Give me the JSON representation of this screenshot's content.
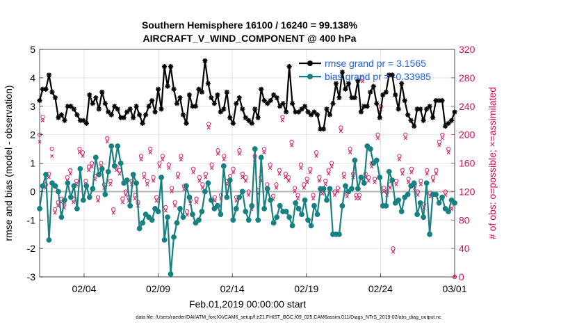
{
  "chart_data": {
    "type": "line",
    "title": "Southern Hemisphere 16100 / 16240 = 99.138%",
    "subtitle": "AIRCRAFT_V_WIND_COMPONENT @ 400 hPa",
    "xlabel": "Feb.01,2019 00:00:00 start",
    "ylabel": "rmse and bias (model - observation)",
    "y2label": "# of obs: o=possible; ×=assimilated",
    "footer": "data file: /Users/raeder/DAI/ATM_forcXX/CAM6_setup/f.e21.FHIST_BGC.f09_025.CAM6assim.011/Diags_NTrS_2019-02/obs_diag_output.nc",
    "xlim": [
      1,
      29
    ],
    "ylim": [
      -3,
      5
    ],
    "y2lim": [
      0,
      320
    ],
    "x_ticks": [
      4,
      9,
      14,
      19,
      24,
      29
    ],
    "x_tick_labels": [
      "02/04",
      "02/09",
      "02/14",
      "02/19",
      "02/24",
      "03/01"
    ],
    "y_ticks": [
      -3,
      -2,
      -1,
      0,
      1,
      2,
      3,
      4,
      5
    ],
    "y_tick_labels": [
      "-3",
      "-2",
      "-1",
      "0",
      "1",
      "2",
      "3",
      "4",
      "5"
    ],
    "y2_ticks": [
      0,
      40,
      80,
      120,
      160,
      200,
      240,
      280,
      320
    ],
    "y2_tick_labels": [
      "0",
      "40",
      "80",
      "120",
      "160",
      "200",
      "240",
      "280",
      "320"
    ],
    "colors": {
      "rmse": "#000000",
      "bias": "#178080",
      "obs": "#d10e5a",
      "zero": "#b0b0b0",
      "legend_text": "#1f5fe0"
    },
    "legend": {
      "position": "top-right",
      "entries": [
        "rmse grand pr = 3.1565",
        "bias grand pr = -0.33985"
      ]
    },
    "series": [
      {
        "name": "rmse",
        "values": [
          3.2,
          3.6,
          3.6,
          4.1,
          3.5,
          3.3,
          2.6,
          2.7,
          2.5,
          3.0,
          3.0,
          2.9,
          2.7,
          2.5,
          2.5,
          2.4,
          3.4,
          3.1,
          3.3,
          2.9,
          3.5,
          3.1,
          2.8,
          2.7,
          3.0,
          2.9,
          2.6,
          2.6,
          2.8,
          2.9,
          2.6,
          3.0,
          2.7,
          2.4,
          2.7,
          3.0,
          3.2,
          2.8,
          3.6,
          2.9,
          4.4,
          3.7,
          4.4,
          3.6,
          3.1,
          3.3,
          2.7,
          2.4,
          3.4,
          3.0,
          3.0,
          3.6,
          3.5,
          4.6,
          3.8,
          3.3,
          3.1,
          3.4,
          2.8,
          2.9,
          3.5,
          2.6,
          2.4,
          3.1,
          3.3,
          2.9,
          2.6,
          2.5,
          2.4,
          2.9,
          2.6,
          3.6,
          3.2,
          3.1,
          3.2,
          3.4,
          3.3,
          3.0,
          3.1,
          2.8,
          4.4,
          3.1,
          2.8,
          2.8,
          2.9,
          3.0,
          2.8,
          2.7,
          2.8,
          2.7,
          2.2,
          2.2,
          2.9,
          2.7,
          3.1,
          3.8,
          3.3,
          4.2,
          3.6,
          3.8,
          3.3,
          3.3,
          3.9,
          2.8,
          3.0,
          3.0,
          3.5,
          3.7,
          3.1,
          2.6,
          3.4,
          3.5,
          4.1,
          4.1,
          3.4,
          2.9,
          3.8,
          3.2,
          2.7,
          2.5,
          2.3,
          2.9,
          2.9,
          2.5,
          2.9,
          3.0,
          2.6,
          3.2,
          3.2,
          3.2,
          2.3,
          2.4,
          2.5,
          2.8
        ]
      },
      {
        "name": "bias",
        "values": [
          -0.6,
          0.2,
          0.6,
          -1.7,
          0.3,
          0.2,
          0.0,
          -0.9,
          -0.3,
          0.3,
          -0.2,
          0.2,
          -0.6,
          0.8,
          -0.3,
          0.2,
          -0.2,
          0.1,
          1.2,
          0.6,
          0.8,
          -0.1,
          0.7,
          1.6,
          0.9,
          1.6,
          1.0,
          0.3,
          0.4,
          -0.5,
          0.6,
          0.3,
          -1.3,
          -1.1,
          -0.8,
          -0.9,
          -1.0,
          -0.6,
          -0.7,
          0.5,
          -1.7,
          -0.9,
          -2.9,
          -1.6,
          -1.1,
          -0.6,
          -0.9,
          0.2,
          -0.2,
          -0.8,
          -1.1,
          -1.0,
          -0.7,
          0.0,
          0.3,
          -0.3,
          -0.6,
          -0.5,
          -0.8,
          0.9,
          -0.2,
          0.4,
          -1.0,
          -0.6,
          -0.2,
          0.0,
          -0.7,
          -1.0,
          -0.5,
          1.5,
          -1.0,
          1.2,
          -0.6,
          0.1,
          -0.3,
          -1.1,
          -0.9,
          -0.5,
          -0.7,
          -0.7,
          -0.9,
          -1.2,
          -0.4,
          -0.6,
          -0.8,
          -0.3,
          -1.0,
          -1.2,
          -0.5,
          -0.8,
          0.1,
          0.1,
          -0.3,
          0.1,
          -1.5,
          -1.5,
          -1.5,
          -0.5,
          0.2,
          0.0,
          0.1,
          1.1,
          0.1,
          0.5,
          0.3,
          1.6,
          1.5,
          1.0,
          1.1,
          0.5,
          -0.5,
          -0.5,
          0.7,
          0.4,
          -0.4,
          -0.3,
          -0.7,
          -0.2,
          -0.1,
          0.2,
          0.3,
          -0.8,
          -0.4,
          -0.9,
          0.3,
          -1.5,
          -0.1,
          -0.1,
          -0.4,
          -0.2,
          -0.6,
          -0.7,
          -0.3,
          -0.4
        ]
      },
      {
        "name": "possible",
        "values": [
          200,
          225,
          130,
          145,
          180,
          95,
          105,
          110,
          102,
          140,
          150,
          110,
          135,
          180,
          175,
          135,
          155,
          160,
          142,
          112,
          160,
          130,
          195,
          135,
          95,
          155,
          150,
          110,
          120,
          112,
          135,
          115,
          105,
          170,
          145,
          135,
          180,
          140,
          112,
          160,
          170,
          98,
          158,
          125,
          105,
          145,
          170,
          128,
          92,
          108,
          152,
          110,
          140,
          130,
          145,
          215,
          158,
          112,
          178,
          115,
          170,
          135,
          142,
          152,
          112,
          178,
          145,
          140,
          120,
          100,
          170,
          122,
          140,
          180,
          130,
          158,
          114,
          130,
          150,
          225,
          145,
          140,
          190,
          125,
          115,
          158,
          130,
          138,
          152,
          115,
          175,
          140,
          122,
          135,
          150,
          160,
          120,
          125,
          210,
          145,
          118,
          180,
          145,
          115,
          115,
          280,
          145,
          140,
          160,
          138,
          200,
          240,
          125,
          120,
          130,
          40,
          135,
          170,
          150,
          200,
          138,
          152,
          130,
          120,
          135,
          102,
          150,
          118,
          140,
          150,
          190,
          200,
          120,
          180,
          100,
          0
        ]
      },
      {
        "name": "assimilated",
        "values": [
          190,
          220,
          125,
          140,
          170,
          90,
          100,
          105,
          97,
          135,
          145,
          105,
          130,
          175,
          170,
          130,
          150,
          155,
          137,
          107,
          155,
          125,
          190,
          130,
          90,
          150,
          145,
          105,
          115,
          107,
          130,
          110,
          100,
          165,
          140,
          130,
          175,
          135,
          107,
          155,
          165,
          93,
          153,
          120,
          100,
          140,
          165,
          123,
          87,
          103,
          147,
          105,
          135,
          125,
          140,
          210,
          153,
          107,
          173,
          110,
          165,
          130,
          137,
          147,
          107,
          173,
          140,
          135,
          115,
          95,
          165,
          117,
          135,
          175,
          125,
          153,
          109,
          125,
          145,
          220,
          140,
          135,
          185,
          120,
          110,
          153,
          125,
          133,
          147,
          110,
          170,
          135,
          117,
          130,
          145,
          155,
          115,
          120,
          205,
          140,
          113,
          175,
          140,
          110,
          110,
          275,
          140,
          135,
          155,
          133,
          195,
          235,
          120,
          115,
          125,
          35,
          130,
          165,
          145,
          195,
          133,
          147,
          125,
          115,
          130,
          97,
          145,
          113,
          135,
          145,
          185,
          195,
          115,
          175,
          95,
          0
        ]
      }
    ]
  }
}
